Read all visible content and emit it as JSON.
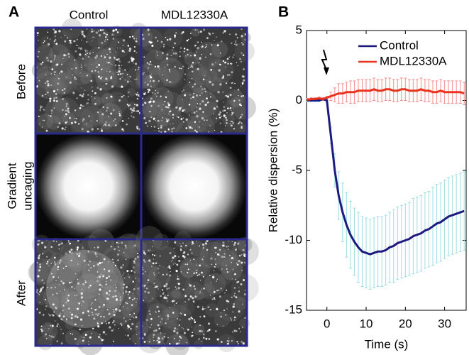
{
  "panel_a": {
    "label": "A",
    "columns": [
      "Control",
      "MDL12330A"
    ],
    "rows": [
      "Before",
      [
        "Gradient",
        "uncaging"
      ],
      "After"
    ]
  },
  "chart_data": {
    "type": "line",
    "panel_label": "B",
    "x_label": "Time (s)",
    "y_label": "Relative dispersion (%)",
    "x": [
      -5,
      -4,
      -3,
      -2,
      -1,
      0,
      1,
      2,
      3,
      4,
      5,
      6,
      7,
      8,
      9,
      10,
      11,
      12,
      13,
      14,
      15,
      16,
      17,
      18,
      19,
      20,
      21,
      22,
      23,
      24,
      25,
      26,
      27,
      28,
      29,
      30,
      31,
      32,
      33,
      34,
      35
    ],
    "series": [
      {
        "name": "Control",
        "color": "#1c1a7e",
        "error_color": "#9fdde3",
        "values": [
          0,
          0,
          0,
          0,
          0.1,
          0,
          -2.5,
          -5,
          -6.8,
          -8,
          -8.9,
          -9.6,
          -10.1,
          -10.5,
          -10.8,
          -10.9,
          -11,
          -10.9,
          -10.8,
          -10.8,
          -10.7,
          -10.5,
          -10.4,
          -10.2,
          -10.1,
          -10,
          -9.9,
          -9.7,
          -9.6,
          -9.5,
          -9.3,
          -9.2,
          -9,
          -8.8,
          -8.7,
          -8.5,
          -8.3,
          -8.2,
          -8.1,
          -8,
          -7.9
        ],
        "errors": [
          0.1,
          0.1,
          0.1,
          0.1,
          0.1,
          0.1,
          0.6,
          1.2,
          1.7,
          2.1,
          2.3,
          2.4,
          2.4,
          2.5,
          2.5,
          2.5,
          2.5,
          2.5,
          2.5,
          2.5,
          2.5,
          2.5,
          2.6,
          2.6,
          2.6,
          2.6,
          2.6,
          2.7,
          2.7,
          2.7,
          2.7,
          2.7,
          2.8,
          2.8,
          2.8,
          2.8,
          2.8,
          2.8,
          2.8,
          2.8,
          2.8
        ]
      },
      {
        "name": "MDL12330A",
        "color": "#e8331f",
        "error_color": "#f29090",
        "values": [
          0.05,
          0.1,
          0.1,
          0.15,
          0.1,
          0.2,
          0.3,
          0.4,
          0.5,
          0.5,
          0.6,
          0.6,
          0.6,
          0.7,
          0.7,
          0.7,
          0.7,
          0.8,
          0.7,
          0.7,
          0.8,
          0.8,
          0.7,
          0.7,
          0.8,
          0.8,
          0.7,
          0.7,
          0.7,
          0.8,
          0.7,
          0.7,
          0.6,
          0.6,
          0.7,
          0.6,
          0.6,
          0.6,
          0.6,
          0.6,
          0.5
        ],
        "errors": [
          0.1,
          0.1,
          0.1,
          0.1,
          0.1,
          0.1,
          0.3,
          0.5,
          0.7,
          0.7,
          0.7,
          0.8,
          0.8,
          0.8,
          0.8,
          0.8,
          0.8,
          0.8,
          0.8,
          0.8,
          0.8,
          0.8,
          0.8,
          0.8,
          0.8,
          0.8,
          0.8,
          0.8,
          0.8,
          0.8,
          0.8,
          0.8,
          0.8,
          0.8,
          0.8,
          0.8,
          0.8,
          0.8,
          0.8,
          0.8,
          0.8
        ]
      }
    ],
    "xlim": [
      -5.2,
      35.5
    ],
    "ylim": [
      -15,
      5
    ],
    "xticks": [
      0,
      10,
      20,
      30
    ],
    "yticks": [
      -15,
      -10,
      -5,
      0,
      5
    ],
    "legend": "upper right"
  }
}
